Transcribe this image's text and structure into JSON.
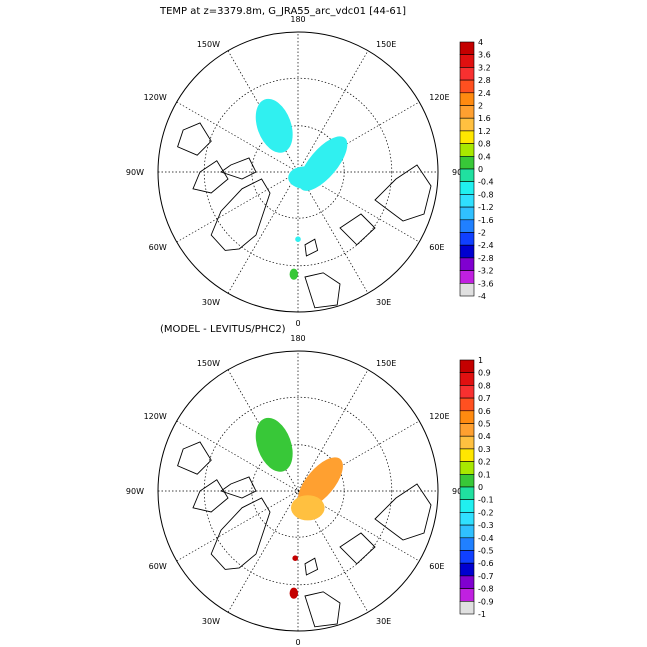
{
  "panels": [
    {
      "title": "TEMP at z=3379.8m, G_JRA55_arc_vdc01 [44-61]",
      "colorbar": {
        "labels": [
          "4",
          "3.6",
          "3.2",
          "2.8",
          "2.4",
          "2",
          "1.6",
          "1.2",
          "0.8",
          "0.4",
          "0",
          "-0.4",
          "-0.8",
          "-1.2",
          "-1.6",
          "-2",
          "-2.4",
          "-2.8",
          "-3.2",
          "-3.6",
          "-4"
        ],
        "colors": [
          "#c40000",
          "#e01010",
          "#f83030",
          "#ff5020",
          "#ff8a10",
          "#ffa030",
          "#ffc040",
          "#ffe600",
          "#a8e800",
          "#38c838",
          "#20e0a0",
          "#20f0f0",
          "#30e0ff",
          "#30c0ff",
          "#2080ff",
          "#1040ff",
          "#0000d0",
          "#8000d0",
          "#c020e0",
          "#e0e0e0",
          "#808080"
        ]
      }
    },
    {
      "title": "(MODEL - LEVITUS/PHC2)",
      "colorbar": {
        "labels": [
          "1",
          "0.9",
          "0.8",
          "0.7",
          "0.6",
          "0.5",
          "0.4",
          "0.3",
          "0.2",
          "0.1",
          "0",
          "-0.1",
          "-0.2",
          "-0.3",
          "-0.4",
          "-0.5",
          "-0.6",
          "-0.7",
          "-0.8",
          "-0.9",
          "-1"
        ],
        "colors": [
          "#c40000",
          "#e01010",
          "#f83030",
          "#ff5020",
          "#ff8a10",
          "#ffa030",
          "#ffc040",
          "#ffe600",
          "#a8e800",
          "#38c838",
          "#20e0a0",
          "#20f0f0",
          "#30e0ff",
          "#30c0ff",
          "#2080ff",
          "#1040ff",
          "#0000d0",
          "#8000d0",
          "#c020e0",
          "#e0e0e0",
          "#808080"
        ]
      }
    }
  ],
  "map": {
    "lon_labels": {
      "top": "180",
      "bottom": "0",
      "left": "90W",
      "right": "90E",
      "ul1": "150W",
      "ur1": "150E",
      "ul2": "120W",
      "ur2": "120E",
      "ll1": "60W",
      "lr1": "60E",
      "ll2": "30W",
      "lr2": "30E"
    },
    "field_colors_top": [
      "#30f0f0",
      "#30f0f0",
      "#30f0f0",
      "#38c838"
    ],
    "field_colors_bottom": [
      "#38c838",
      "#ffa030",
      "#ffc040",
      "#c40000"
    ]
  }
}
